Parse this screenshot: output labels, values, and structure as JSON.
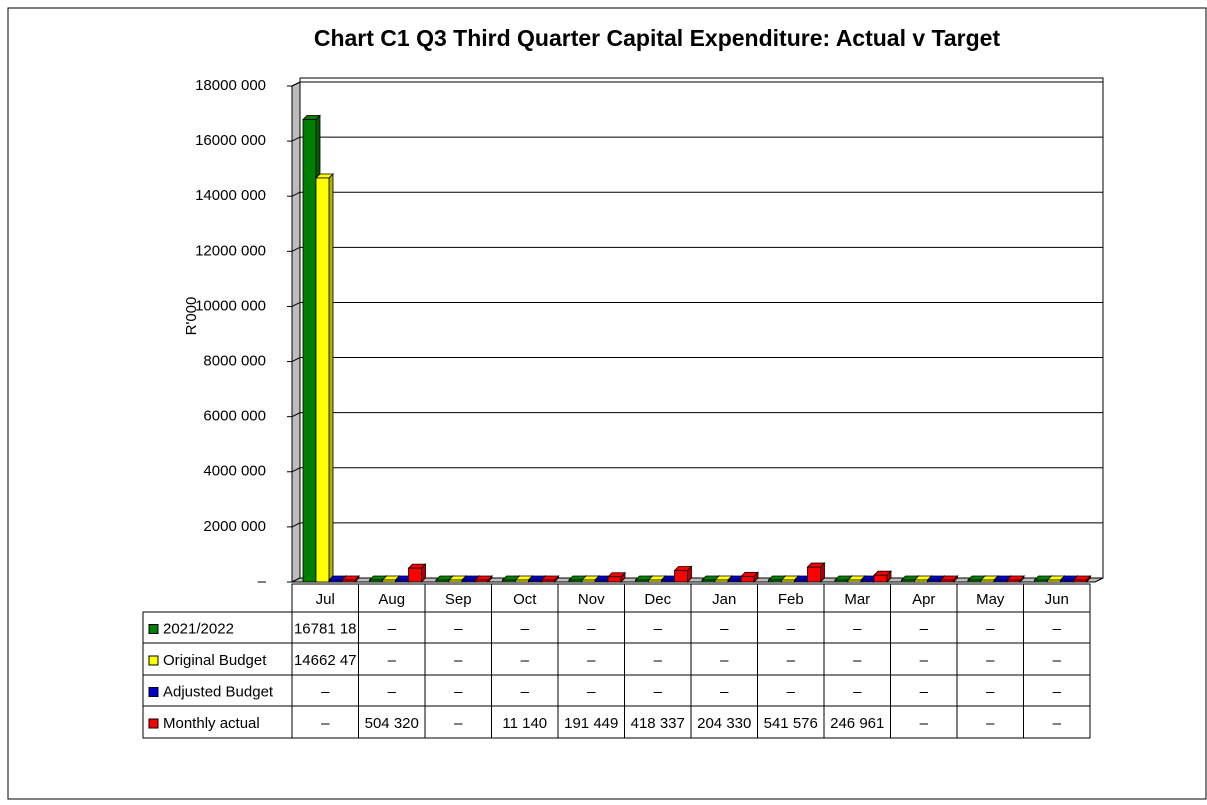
{
  "chart_data": {
    "type": "bar",
    "title": "Chart C1 Q3 Third Quarter Capital Expenditure: Actual v Target",
    "y_label": "R'000",
    "categories": [
      "Jul",
      "Aug",
      "Sep",
      "Oct",
      "Nov",
      "Dec",
      "Jan",
      "Feb",
      "Mar",
      "Apr",
      "May",
      "Jun"
    ],
    "series": [
      {
        "name": "2021/2022",
        "color": "#008000",
        "values": [
          16781180,
          0,
          0,
          0,
          0,
          0,
          0,
          0,
          0,
          0,
          0,
          0
        ],
        "value_labels": [
          "16781 18",
          "–",
          "–",
          "–",
          "–",
          "–",
          "–",
          "–",
          "–",
          "–",
          "–",
          "–"
        ]
      },
      {
        "name": "Original Budget",
        "color": "#ffff00",
        "values": [
          14662470,
          0,
          0,
          0,
          0,
          0,
          0,
          0,
          0,
          0,
          0,
          0
        ],
        "value_labels": [
          "14662 47",
          "–",
          "–",
          "–",
          "–",
          "–",
          "–",
          "–",
          "–",
          "–",
          "–",
          "–"
        ]
      },
      {
        "name": "Adjusted Budget",
        "color": "#0000cc",
        "values": [
          0,
          0,
          0,
          0,
          0,
          0,
          0,
          0,
          0,
          0,
          0,
          0
        ],
        "value_labels": [
          "–",
          "–",
          "–",
          "–",
          "–",
          "–",
          "–",
          "–",
          "–",
          "–",
          "–",
          "–"
        ]
      },
      {
        "name": "Monthly actual",
        "color": "#ff0000",
        "values": [
          0,
          504320,
          0,
          11140,
          191449,
          418337,
          204330,
          541576,
          246961,
          0,
          0,
          0
        ],
        "value_labels": [
          "–",
          "504 320",
          "–",
          "11 140",
          "191 449",
          "418 337",
          "204 330",
          "541 576",
          "246 961",
          "–",
          "–",
          "–"
        ]
      }
    ],
    "ylim": [
      0,
      18000000
    ],
    "yticks": [
      {
        "value": 0,
        "label": "–"
      },
      {
        "value": 2000000,
        "label": "2000 000"
      },
      {
        "value": 4000000,
        "label": "4000 000"
      },
      {
        "value": 6000000,
        "label": "6000 000"
      },
      {
        "value": 8000000,
        "label": "8000 000"
      },
      {
        "value": 10000000,
        "label": "10000 000"
      },
      {
        "value": 12000000,
        "label": "12000 000"
      },
      {
        "value": 14000000,
        "label": "14000 000"
      },
      {
        "value": 16000000,
        "label": "16000 000"
      },
      {
        "value": 18000000,
        "label": "18000 000"
      }
    ],
    "grid": true
  }
}
